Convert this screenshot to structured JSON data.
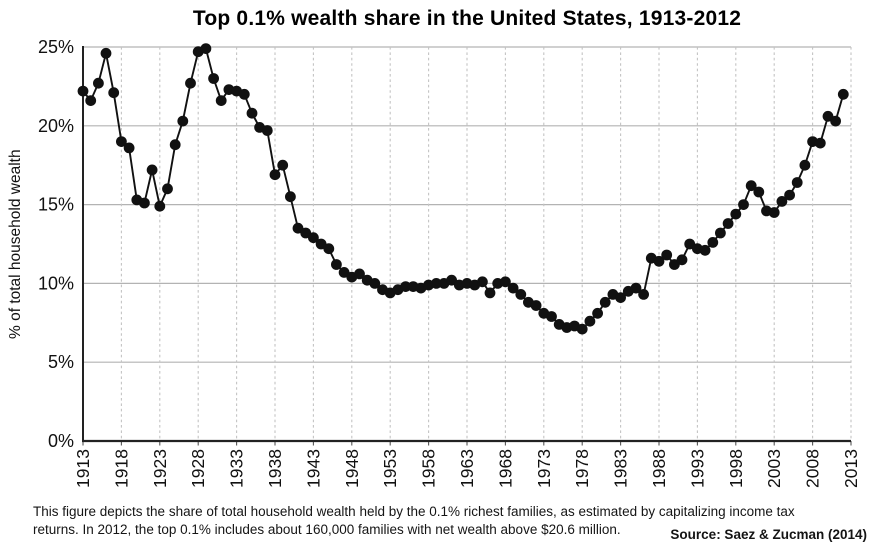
{
  "title": "Top 0.1% wealth share in the United States, 1913-2012",
  "caption": {
    "lines": [
      "This figure depicts the share of total household wealth held by the 0.1% richest families, as estimated by capitalizing income tax",
      "returns. In 2012, the top 0.1% includes about 160,000 families with net wealth above $20.6 million."
    ]
  },
  "source": "Source: Saez & Zucman (2014)",
  "colors": {
    "series": "#111111",
    "marker": "#111111",
    "h_grid": "#b3b3b3",
    "v_grid": "#c4c4c4",
    "axis": "#222222",
    "tick_text": "#111111",
    "background": "#ffffff"
  },
  "chart_data": {
    "type": "line",
    "title": "Top 0.1% wealth share in the United States, 1913-2012",
    "xlabel": "",
    "ylabel": "% of total household wealth",
    "legend": "none",
    "grid": {
      "horizontal": "solid",
      "vertical": "dashed"
    },
    "marker": "filled-circle",
    "xlim": [
      1913,
      2013
    ],
    "ylim": [
      0,
      25
    ],
    "x_ticks": [
      1913,
      1918,
      1923,
      1928,
      1933,
      1938,
      1943,
      1948,
      1953,
      1958,
      1963,
      1968,
      1973,
      1978,
      1983,
      1988,
      1993,
      1998,
      2003,
      2008,
      2013
    ],
    "y_ticks": [
      0,
      5,
      10,
      15,
      20,
      25
    ],
    "y_tick_labels": [
      "0%",
      "5%",
      "10%",
      "15%",
      "20%",
      "25%"
    ],
    "series_name": "Top 0.1% wealth share (% of total household wealth)",
    "x": [
      1913,
      1914,
      1915,
      1916,
      1917,
      1918,
      1919,
      1920,
      1921,
      1922,
      1923,
      1924,
      1925,
      1926,
      1927,
      1928,
      1929,
      1930,
      1931,
      1932,
      1933,
      1934,
      1935,
      1936,
      1937,
      1938,
      1939,
      1940,
      1941,
      1942,
      1943,
      1944,
      1945,
      1946,
      1947,
      1948,
      1949,
      1950,
      1951,
      1952,
      1953,
      1954,
      1955,
      1956,
      1957,
      1958,
      1959,
      1960,
      1961,
      1962,
      1963,
      1964,
      1965,
      1966,
      1967,
      1968,
      1969,
      1970,
      1971,
      1972,
      1973,
      1974,
      1975,
      1976,
      1977,
      1978,
      1979,
      1980,
      1981,
      1982,
      1983,
      1984,
      1985,
      1986,
      1987,
      1988,
      1989,
      1990,
      1991,
      1992,
      1993,
      1994,
      1995,
      1996,
      1997,
      1998,
      1999,
      2000,
      2001,
      2002,
      2003,
      2004,
      2005,
      2006,
      2007,
      2008,
      2009,
      2010,
      2011,
      2012
    ],
    "values": [
      22.2,
      21.6,
      22.7,
      24.6,
      22.1,
      19.0,
      18.6,
      15.3,
      15.1,
      17.2,
      14.9,
      16.0,
      18.8,
      20.3,
      22.7,
      24.7,
      24.9,
      23.0,
      21.6,
      22.3,
      22.2,
      22.0,
      20.8,
      19.9,
      19.7,
      16.9,
      17.5,
      15.5,
      13.5,
      13.2,
      12.9,
      12.5,
      12.2,
      11.2,
      10.7,
      10.4,
      10.6,
      10.2,
      10.0,
      9.6,
      9.4,
      9.6,
      9.8,
      9.8,
      9.7,
      9.9,
      10.0,
      10.0,
      10.2,
      9.9,
      10.0,
      9.9,
      10.1,
      9.4,
      10.0,
      10.1,
      9.7,
      9.3,
      8.8,
      8.6,
      8.1,
      7.9,
      7.4,
      7.2,
      7.3,
      7.1,
      7.6,
      8.1,
      8.8,
      9.3,
      9.1,
      9.5,
      9.7,
      9.3,
      11.6,
      11.4,
      11.8,
      11.2,
      11.5,
      12.5,
      12.2,
      12.1,
      12.6,
      13.2,
      13.8,
      14.4,
      15.0,
      16.2,
      15.8,
      14.6,
      14.5,
      15.2,
      15.6,
      16.4,
      17.5,
      19.0,
      18.9,
      20.6,
      20.3,
      22.0
    ]
  }
}
